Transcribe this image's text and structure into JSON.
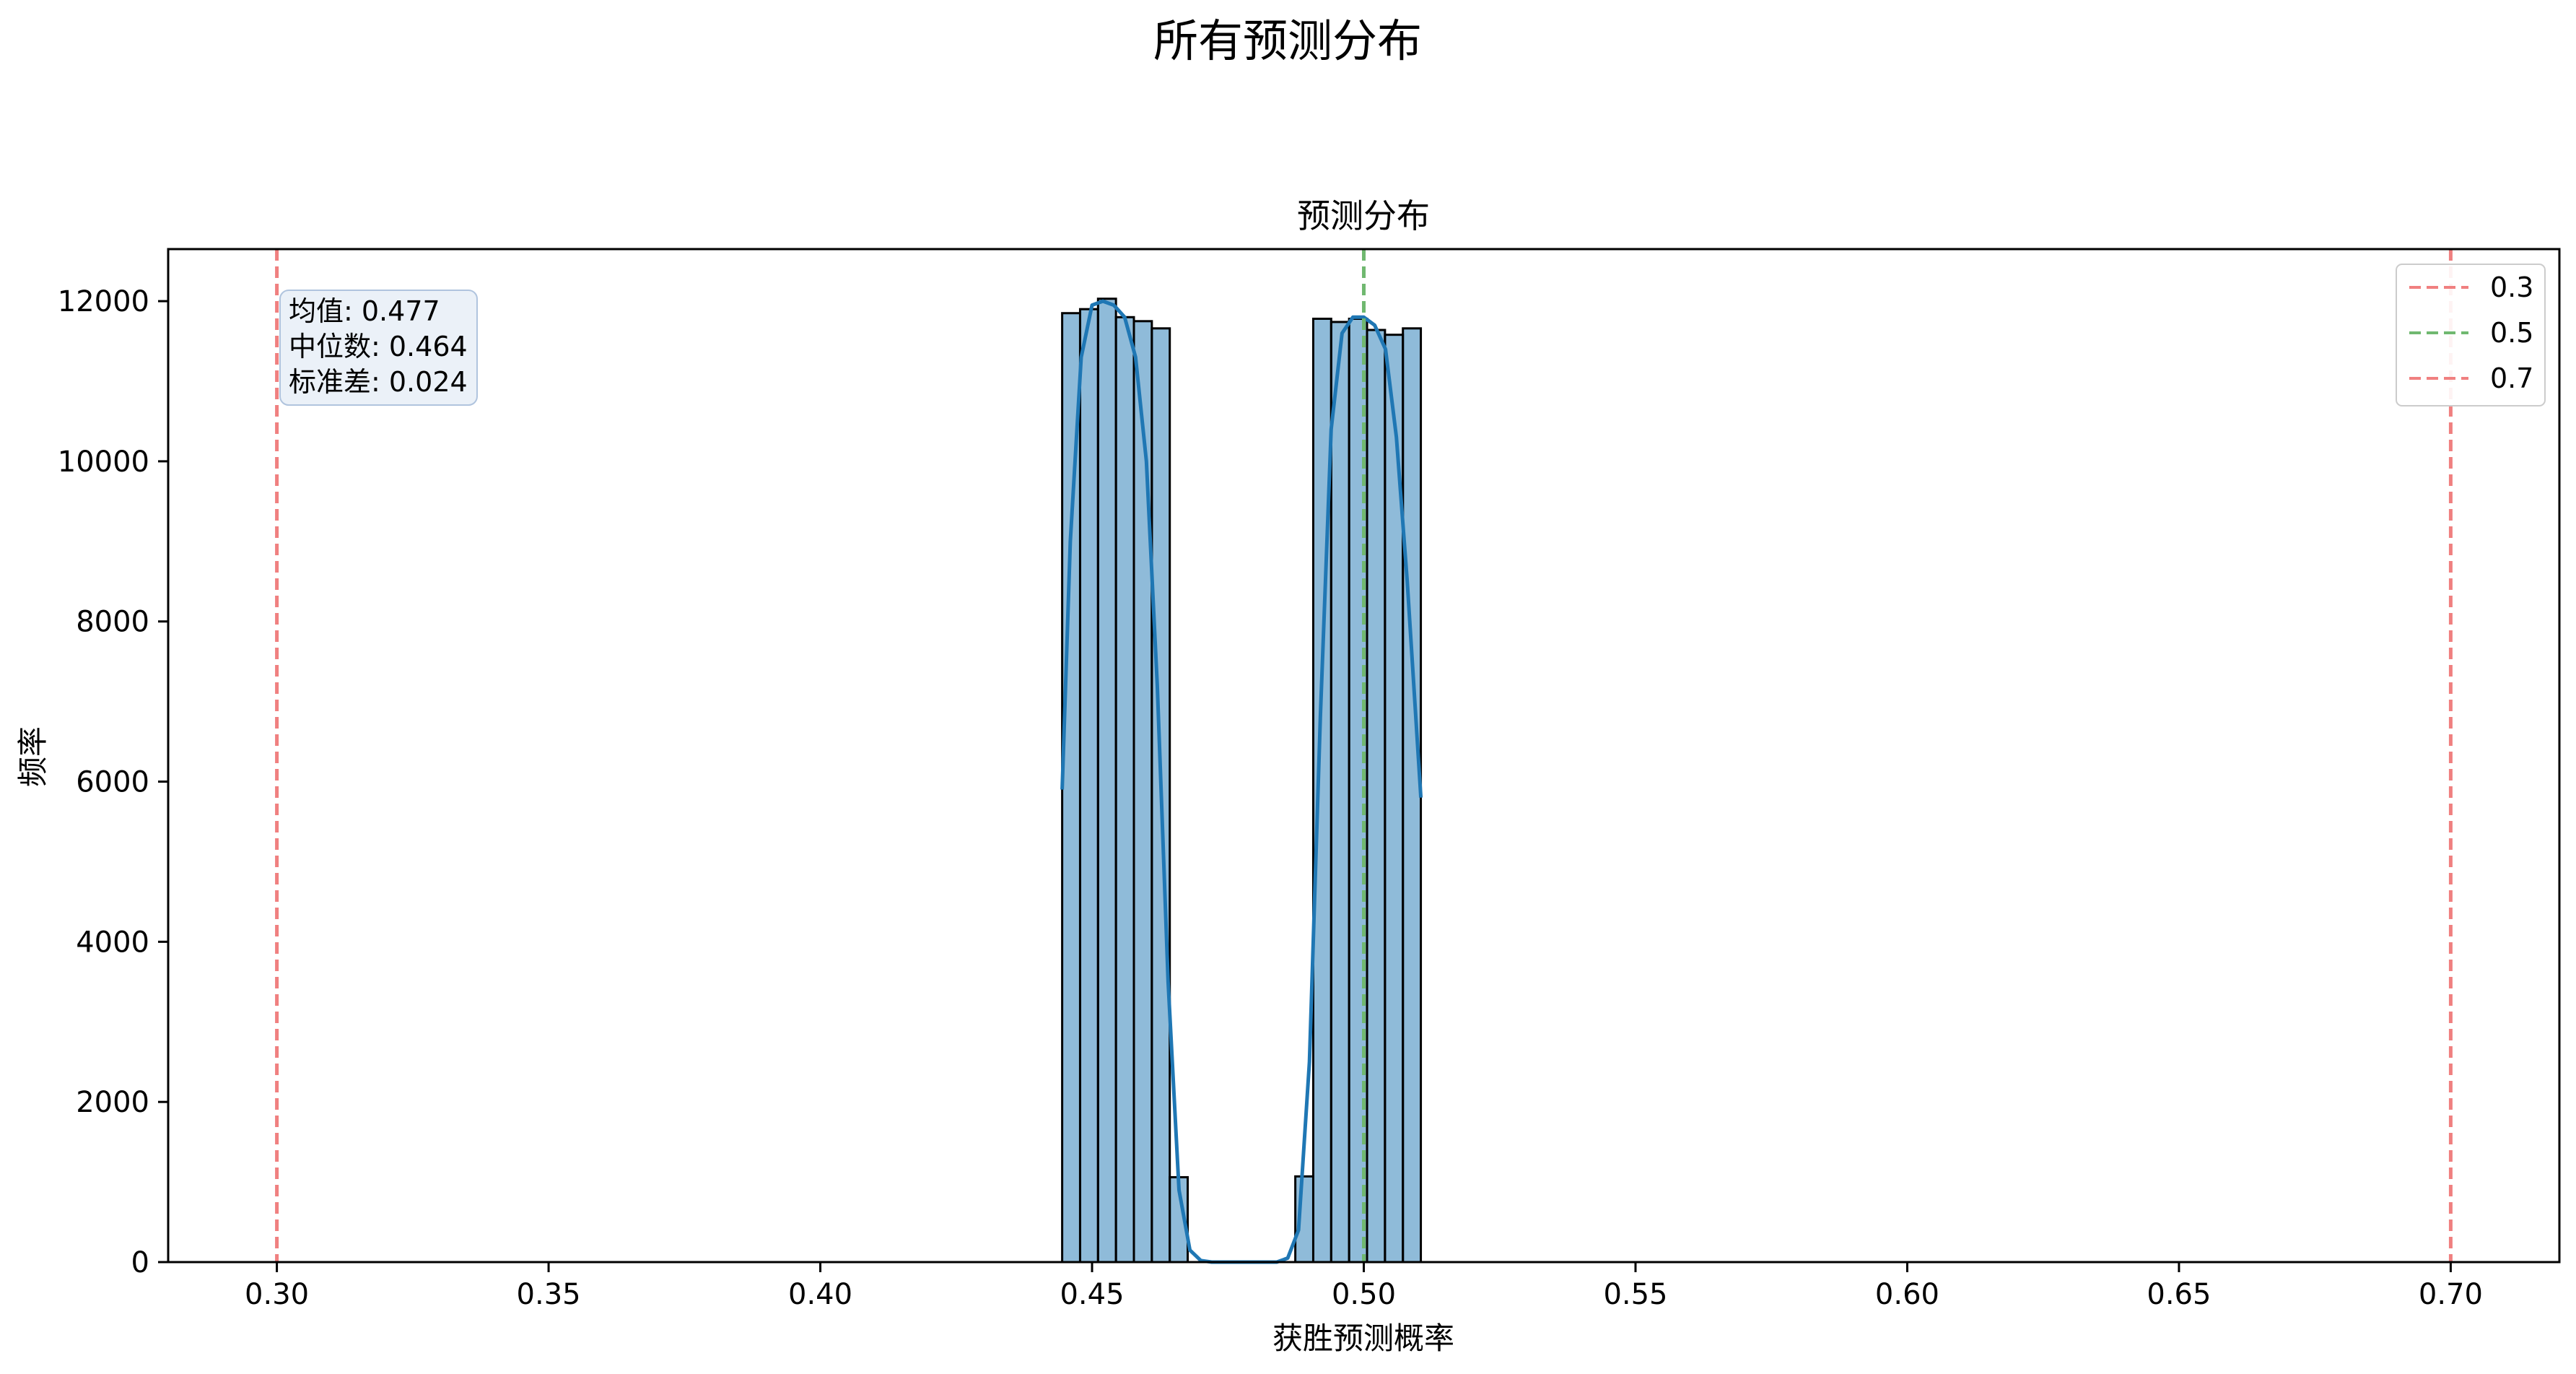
{
  "chart_data": {
    "type": "bar",
    "suptitle": "所有预测分布",
    "title": "预测分布",
    "xlabel": "获胜预测概率",
    "ylabel": "频率",
    "xlim": [
      0.28,
      0.72
    ],
    "ylim": [
      0,
      12650
    ],
    "xticks": [
      0.3,
      0.35,
      0.4,
      0.45,
      0.5,
      0.55,
      0.6,
      0.65,
      0.7
    ],
    "xtick_labels": [
      "0.30",
      "0.35",
      "0.40",
      "0.45",
      "0.50",
      "0.55",
      "0.60",
      "0.65",
      "0.70"
    ],
    "yticks": [
      0,
      2000,
      4000,
      6000,
      8000,
      10000,
      12000
    ],
    "ytick_labels": [
      "0",
      "2000",
      "4000",
      "6000",
      "8000",
      "10000",
      "12000"
    ],
    "bin_edges": [
      0.4445,
      0.4478,
      0.4511,
      0.4544,
      0.4577,
      0.461,
      0.4643,
      0.4676,
      0.4709,
      0.4742,
      0.4775,
      0.4808,
      0.4841,
      0.4874,
      0.4907,
      0.494,
      0.4973,
      0.5006,
      0.5039,
      0.5072,
      0.5105
    ],
    "counts": [
      11850,
      11900,
      12030,
      11800,
      11750,
      11660,
      1060,
      0,
      0,
      0,
      0,
      0,
      0,
      1070,
      11780,
      11740,
      11780,
      11640,
      11580,
      11660
    ],
    "kde": {
      "color": "#1f77b4",
      "x": [
        0.4445,
        0.446,
        0.448,
        0.45,
        0.452,
        0.454,
        0.456,
        0.458,
        0.46,
        0.462,
        0.464,
        0.466,
        0.468,
        0.47,
        0.472,
        0.474,
        0.476,
        0.478,
        0.48,
        0.482,
        0.484,
        0.486,
        0.488,
        0.49,
        0.492,
        0.494,
        0.496,
        0.498,
        0.5,
        0.502,
        0.504,
        0.506,
        0.508,
        0.5105
      ],
      "y": [
        5900,
        9000,
        11300,
        11950,
        12000,
        11950,
        11800,
        11300,
        10000,
        7200,
        3500,
        900,
        150,
        20,
        0,
        0,
        0,
        0,
        0,
        0,
        0,
        50,
        400,
        2500,
        6800,
        10400,
        11600,
        11800,
        11800,
        11700,
        11400,
        10300,
        8500,
        5800
      ]
    },
    "bar_color": "#1f77b4",
    "vlines": [
      {
        "x": 0.3,
        "label": "0.3",
        "color": "#f08080"
      },
      {
        "x": 0.5,
        "label": "0.5",
        "color": "#70b870"
      },
      {
        "x": 0.7,
        "label": "0.7",
        "color": "#f08080"
      }
    ],
    "stats": [
      "均值: 0.477",
      "中位数: 0.464",
      "标准差: 0.024"
    ],
    "legend_position": "top-right",
    "grid": false
  }
}
